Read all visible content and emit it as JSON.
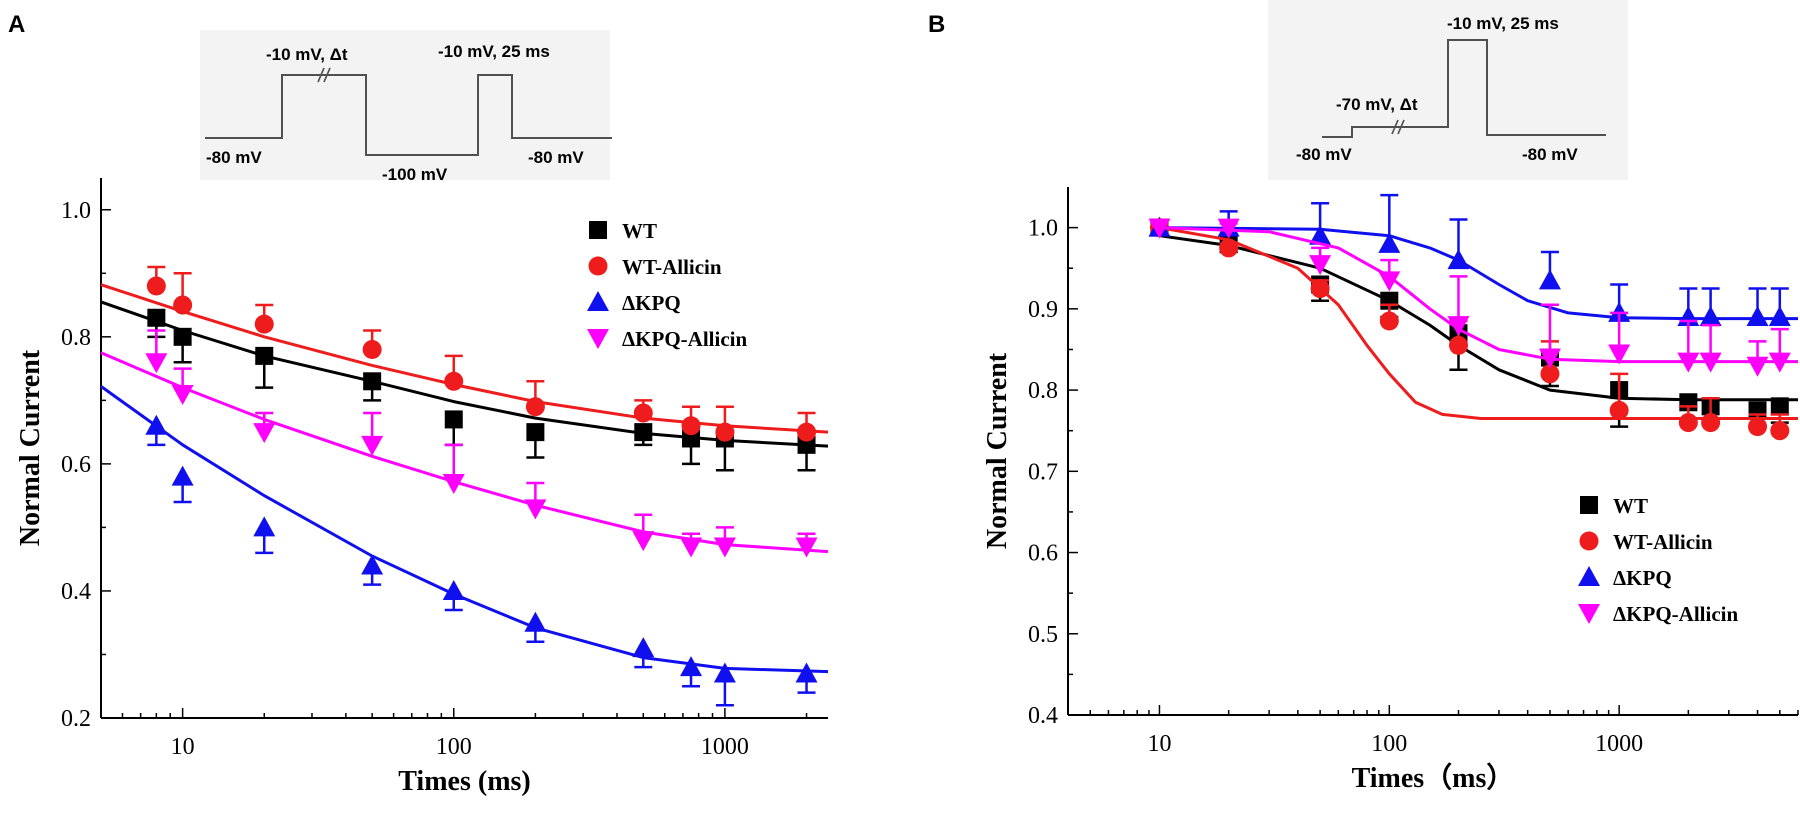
{
  "figure": {
    "panels": [
      "A",
      "B"
    ]
  },
  "colors": {
    "WT": "#000000",
    "WT-Allicin": "#ee1c1c",
    "dKPQ": "#1010ee",
    "dKPQ-Allicin": "#ff00ff",
    "protocol_line": "#505050",
    "inset_bg": "#f3f3f3"
  },
  "protocolA": {
    "labels": [
      "-10 mV,  Δt",
      "-10 mV, 25 ms",
      "-80 mV",
      "-100 mV",
      "-80 mV"
    ]
  },
  "protocolB": {
    "labels": [
      "-10 mV, 25 ms",
      "-70 mV,  Δt",
      "-80 mV",
      "-80 mV"
    ]
  },
  "chart_data": [
    {
      "panel": "A",
      "type": "scatter",
      "xscale": "log",
      "xlabel": "Times (ms)",
      "ylabel": "Normal Current",
      "xlim": [
        5,
        2400
      ],
      "ylim": [
        0.2,
        1.05
      ],
      "xticks": [
        10,
        100,
        1000
      ],
      "xtick_labels": [
        "10",
        "100",
        "1000"
      ],
      "yticks": [
        0.2,
        0.4,
        0.6,
        0.8,
        1.0
      ],
      "ytick_labels": [
        "0.2",
        "0.4",
        "0.6",
        "0.8",
        "1.0"
      ],
      "legend": "top-right",
      "series": [
        {
          "name": "WT",
          "key": "WT",
          "marker": "square",
          "x": [
            8,
            10,
            20,
            50,
            100,
            200,
            500,
            750,
            1000,
            2000
          ],
          "y": [
            0.83,
            0.8,
            0.77,
            0.73,
            0.67,
            0.65,
            0.65,
            0.64,
            0.64,
            0.63
          ],
          "err": [
            0.03,
            0.04,
            0.05,
            0.03,
            0.04,
            0.04,
            0.02,
            0.04,
            0.05,
            0.04
          ],
          "err_dir": "down",
          "fit": {
            "x": [
              5,
              10,
              20,
              50,
              100,
              200,
              500,
              1000,
              2400
            ],
            "y": [
              0.855,
              0.81,
              0.77,
              0.73,
              0.698,
              0.672,
              0.648,
              0.637,
              0.628
            ]
          }
        },
        {
          "name": "WT-Allicin",
          "key": "WT-Allicin",
          "marker": "circle",
          "x": [
            8,
            10,
            20,
            50,
            100,
            200,
            500,
            750,
            1000,
            2000
          ],
          "y": [
            0.88,
            0.85,
            0.82,
            0.78,
            0.73,
            0.69,
            0.68,
            0.66,
            0.65,
            0.65
          ],
          "err": [
            0.03,
            0.05,
            0.03,
            0.03,
            0.04,
            0.04,
            0.02,
            0.03,
            0.04,
            0.03
          ],
          "err_dir": "up",
          "fit": {
            "x": [
              5,
              10,
              20,
              50,
              100,
              200,
              500,
              1000,
              2400
            ],
            "y": [
              0.882,
              0.84,
              0.8,
              0.755,
              0.725,
              0.698,
              0.672,
              0.66,
              0.65
            ]
          }
        },
        {
          "name": "ΔKPQ",
          "key": "dKPQ",
          "marker": "triangle-up",
          "x": [
            8,
            10,
            20,
            50,
            100,
            200,
            500,
            750,
            1000,
            2000
          ],
          "y": [
            0.66,
            0.58,
            0.5,
            0.44,
            0.4,
            0.35,
            0.31,
            0.28,
            0.27,
            0.27
          ],
          "err": [
            0.03,
            0.04,
            0.04,
            0.03,
            0.03,
            0.03,
            0.03,
            0.03,
            0.05,
            0.03
          ],
          "err_dir": "down",
          "fit": {
            "x": [
              5,
              10,
              20,
              50,
              100,
              200,
              500,
              1000,
              2400
            ],
            "y": [
              0.722,
              0.63,
              0.55,
              0.455,
              0.395,
              0.342,
              0.295,
              0.278,
              0.273
            ]
          }
        },
        {
          "name": "ΔKPQ-Allicin",
          "key": "dKPQ-Allicin",
          "marker": "triangle-down",
          "x": [
            8,
            10,
            20,
            50,
            100,
            200,
            500,
            750,
            1000,
            2000
          ],
          "y": [
            0.76,
            0.71,
            0.65,
            0.63,
            0.57,
            0.53,
            0.48,
            0.47,
            0.47,
            0.47
          ],
          "err": [
            0.05,
            0.04,
            0.03,
            0.05,
            0.06,
            0.04,
            0.04,
            0.02,
            0.03,
            0.02
          ],
          "err_dir": "up",
          "fit": {
            "x": [
              5,
              10,
              20,
              50,
              100,
              200,
              500,
              1000,
              2400
            ],
            "y": [
              0.775,
              0.72,
              0.67,
              0.612,
              0.572,
              0.535,
              0.493,
              0.473,
              0.462
            ]
          }
        }
      ]
    },
    {
      "panel": "B",
      "type": "scatter",
      "xscale": "log",
      "xlabel": "Times（ms）",
      "ylabel": "Normal Current",
      "xlim": [
        4,
        6000
      ],
      "ylim": [
        0.4,
        1.05
      ],
      "xticks": [
        10,
        100,
        1000
      ],
      "xtick_labels": [
        "10",
        "100",
        "1000"
      ],
      "yticks": [
        0.4,
        0.5,
        0.6,
        0.7,
        0.8,
        0.9,
        1.0
      ],
      "ytick_labels": [
        "0.4",
        "0.5",
        "0.6",
        "0.7",
        "0.8",
        "0.9",
        "1.0"
      ],
      "legend": "bottom-right",
      "series": [
        {
          "name": "WT",
          "key": "WT",
          "marker": "square",
          "x": [
            10,
            20,
            50,
            100,
            200,
            500,
            1000,
            2000,
            2500,
            4000,
            5000
          ],
          "y": [
            1.0,
            0.98,
            0.93,
            0.91,
            0.87,
            0.84,
            0.8,
            0.785,
            0.78,
            0.775,
            0.78
          ],
          "err": [
            0,
            0.01,
            0.02,
            0.02,
            0.045,
            0.035,
            0.045,
            0.005,
            0.02,
            0.02,
            0.02
          ],
          "err_dir": "down",
          "fit": {
            "x": [
              10,
              20,
              50,
              100,
              150,
              200,
              300,
              500,
              1000,
              2000,
              6000
            ],
            "y": [
              0.99,
              0.978,
              0.95,
              0.91,
              0.88,
              0.855,
              0.825,
              0.8,
              0.79,
              0.788,
              0.788
            ]
          }
        },
        {
          "name": "WT-Allicin",
          "key": "WT-Allicin",
          "marker": "circle",
          "x": [
            10,
            20,
            50,
            100,
            200,
            500,
            1000,
            2000,
            2500,
            4000,
            5000
          ],
          "y": [
            1.0,
            0.975,
            0.925,
            0.885,
            0.855,
            0.82,
            0.775,
            0.76,
            0.76,
            0.755,
            0.75
          ],
          "err": [
            0,
            0.005,
            0.01,
            0.02,
            0.03,
            0.04,
            0.045,
            0.02,
            0.03,
            0.015,
            0.02
          ],
          "err_dir": "up",
          "fit": {
            "x": [
              10,
              20,
              40,
              60,
              80,
              100,
              130,
              170,
              250,
              400,
              1000,
              6000
            ],
            "y": [
              1.0,
              0.985,
              0.95,
              0.905,
              0.855,
              0.82,
              0.785,
              0.77,
              0.765,
              0.765,
              0.765,
              0.765
            ]
          }
        },
        {
          "name": "ΔKPQ",
          "key": "dKPQ",
          "marker": "triangle-up",
          "x": [
            10,
            20,
            50,
            100,
            200,
            500,
            1000,
            2000,
            2500,
            4000,
            5000
          ],
          "y": [
            1.0,
            1.0,
            0.99,
            0.98,
            0.96,
            0.935,
            0.895,
            0.89,
            0.89,
            0.89,
            0.89
          ],
          "err": [
            0,
            0.02,
            0.04,
            0.06,
            0.05,
            0.035,
            0.035,
            0.035,
            0.035,
            0.035,
            0.035
          ],
          "err_dir": "up",
          "fit": {
            "x": [
              10,
              50,
              100,
              150,
              200,
              300,
              400,
              600,
              1000,
              2000,
              6000
            ],
            "y": [
              1.0,
              0.998,
              0.99,
              0.975,
              0.96,
              0.93,
              0.91,
              0.895,
              0.889,
              0.888,
              0.888
            ]
          }
        },
        {
          "name": "ΔKPQ-Allicin",
          "key": "dKPQ-Allicin",
          "marker": "triangle-down",
          "x": [
            10,
            20,
            50,
            100,
            200,
            500,
            1000,
            2000,
            2500,
            4000,
            5000
          ],
          "y": [
            1.0,
            1.0,
            0.955,
            0.935,
            0.88,
            0.84,
            0.845,
            0.835,
            0.835,
            0.83,
            0.835
          ],
          "err": [
            0,
            0.005,
            0.02,
            0.025,
            0.06,
            0.065,
            0.05,
            0.05,
            0.045,
            0.03,
            0.04
          ],
          "err_dir": "up",
          "fit": {
            "x": [
              10,
              30,
              60,
              100,
              150,
              200,
              300,
              500,
              1000,
              6000
            ],
            "y": [
              1.0,
              0.995,
              0.975,
              0.94,
              0.9,
              0.875,
              0.85,
              0.838,
              0.835,
              0.835
            ]
          }
        }
      ]
    }
  ]
}
